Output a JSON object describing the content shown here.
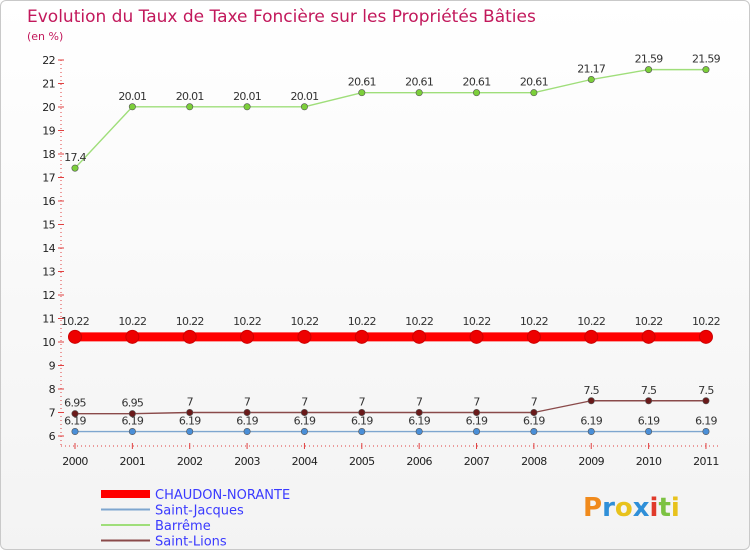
{
  "chart_data": {
    "type": "line",
    "title": "Evolution du Taux de Taxe Foncière sur les Propriétés Bâties",
    "unit_label": "(en %)",
    "categories": [
      "2000",
      "2001",
      "2002",
      "2003",
      "2004",
      "2005",
      "2006",
      "2007",
      "2008",
      "2009",
      "2010",
      "2011"
    ],
    "ylim": [
      6,
      22
    ],
    "yticks": [
      6,
      7,
      8,
      9,
      10,
      11,
      12,
      13,
      14,
      15,
      16,
      17,
      18,
      19,
      20,
      21,
      22
    ],
    "grid": false,
    "legend_position": "bottom-left",
    "series": [
      {
        "name": "CHAUDON-NORANTE",
        "color": "#ff0000",
        "marker_color": "#ee0000",
        "values": [
          10.22,
          10.22,
          10.22,
          10.22,
          10.22,
          10.22,
          10.22,
          10.22,
          10.22,
          10.22,
          10.22,
          10.22
        ],
        "labels": [
          "10.22",
          "10.22",
          "10.22",
          "10.22",
          "10.22",
          "10.22",
          "10.22",
          "10.22",
          "10.22",
          "10.22",
          "10.22",
          "10.22"
        ],
        "thick": true
      },
      {
        "name": "Saint-Jacques",
        "color": "#7ea6cf",
        "marker_color": "#4a8fd8",
        "values": [
          6.19,
          6.19,
          6.19,
          6.19,
          6.19,
          6.19,
          6.19,
          6.19,
          6.19,
          6.19,
          6.19,
          6.19
        ],
        "labels": [
          "6.19",
          "6.19",
          "6.19",
          "6.19",
          "6.19",
          "6.19",
          "6.19",
          "6.19",
          "6.19",
          "6.19",
          "6.19",
          "6.19"
        ],
        "thick": false
      },
      {
        "name": "Barrême",
        "color": "#9fde7a",
        "marker_color": "#7ccf3a",
        "values": [
          17.4,
          20.01,
          20.01,
          20.01,
          20.01,
          20.61,
          20.61,
          20.61,
          20.61,
          21.17,
          21.59,
          21.59
        ],
        "labels": [
          "17.4",
          "20.01",
          "20.01",
          "20.01",
          "20.01",
          "20.61",
          "20.61",
          "20.61",
          "20.61",
          "21.17",
          "21.59",
          "21.59"
        ],
        "thick": false
      },
      {
        "name": "Saint-Lions",
        "color": "#8a4a4a",
        "marker_color": "#6a1a1a",
        "values": [
          6.95,
          6.95,
          7,
          7,
          7,
          7,
          7,
          7,
          7,
          7.5,
          7.5,
          7.5
        ],
        "labels": [
          "6.95",
          "6.95",
          "7",
          "7",
          "7",
          "7",
          "7",
          "7",
          "7",
          "7.5",
          "7.5",
          "7.5"
        ],
        "thick": false
      }
    ]
  },
  "logo": {
    "letters": [
      "P",
      "r",
      "o",
      "x",
      "i",
      "t",
      "i"
    ],
    "colors": [
      "#f08a1c",
      "#2f8fd8",
      "#e8c21c",
      "#2f8fd8",
      "#e03a2a",
      "#7cc242",
      "#e8c21c"
    ]
  }
}
